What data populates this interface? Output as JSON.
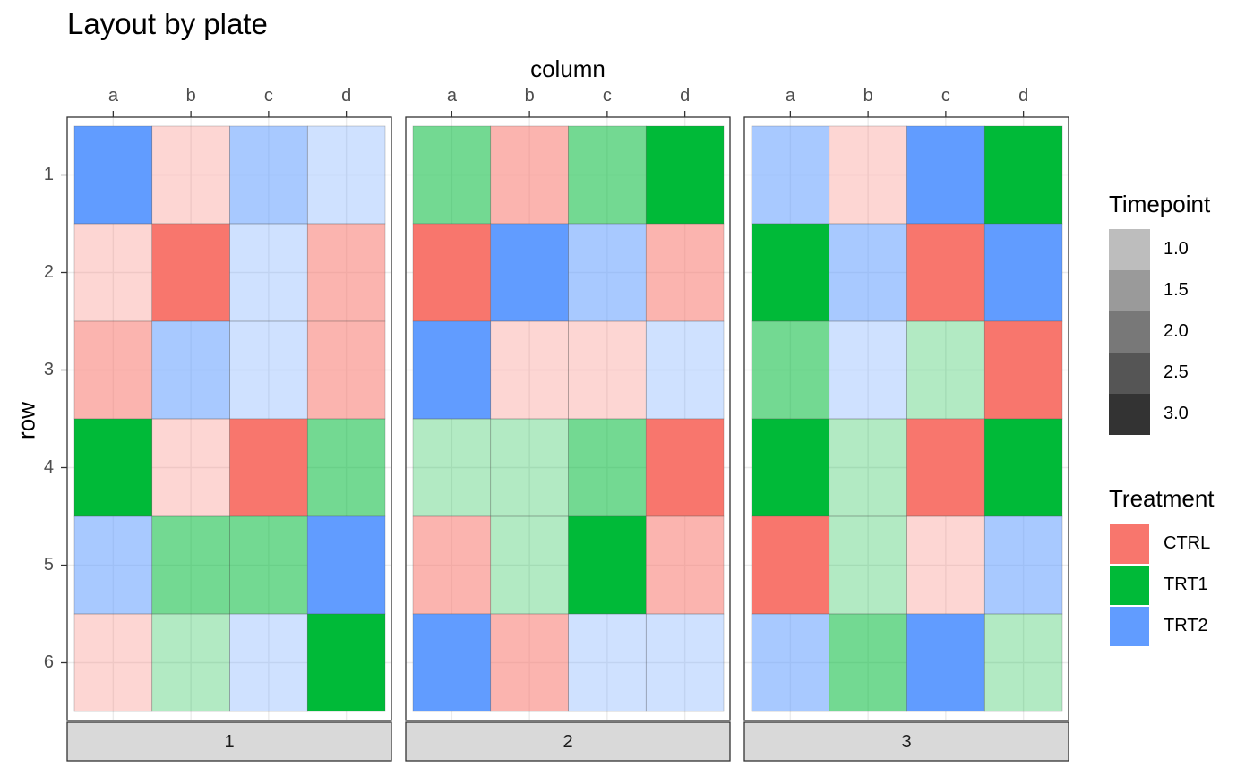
{
  "chart_data": {
    "type": "heatmap",
    "title": "Layout by plate",
    "xlabel": "column",
    "ylabel": "row",
    "x_categories": [
      "a",
      "b",
      "c",
      "d"
    ],
    "y_categories": [
      "1",
      "2",
      "3",
      "4",
      "5",
      "6"
    ],
    "facets": [
      {
        "plate": "1",
        "cells": [
          [
            {
              "t": "TRT2",
              "tp": 1.0
            },
            {
              "t": "CTRL",
              "tp": 3.0
            },
            {
              "t": "TRT2",
              "tp": 2.0
            },
            {
              "t": "TRT2",
              "tp": 3.0
            }
          ],
          [
            {
              "t": "CTRL",
              "tp": 3.0
            },
            {
              "t": "CTRL",
              "tp": 1.0
            },
            {
              "t": "TRT2",
              "tp": 3.0
            },
            {
              "t": "CTRL",
              "tp": 2.0
            }
          ],
          [
            {
              "t": "CTRL",
              "tp": 2.0
            },
            {
              "t": "TRT2",
              "tp": 2.0
            },
            {
              "t": "TRT2",
              "tp": 3.0
            },
            {
              "t": "CTRL",
              "tp": 2.0
            }
          ],
          [
            {
              "t": "TRT1",
              "tp": 1.0
            },
            {
              "t": "CTRL",
              "tp": 3.0
            },
            {
              "t": "CTRL",
              "tp": 1.0
            },
            {
              "t": "TRT1",
              "tp": 2.0
            }
          ],
          [
            {
              "t": "TRT2",
              "tp": 2.0
            },
            {
              "t": "TRT1",
              "tp": 2.0
            },
            {
              "t": "TRT1",
              "tp": 2.0
            },
            {
              "t": "TRT2",
              "tp": 1.0
            }
          ],
          [
            {
              "t": "CTRL",
              "tp": 3.0
            },
            {
              "t": "TRT1",
              "tp": 3.0
            },
            {
              "t": "TRT2",
              "tp": 3.0
            },
            {
              "t": "TRT1",
              "tp": 1.0
            }
          ]
        ]
      },
      {
        "plate": "2",
        "cells": [
          [
            {
              "t": "TRT1",
              "tp": 2.0
            },
            {
              "t": "CTRL",
              "tp": 2.0
            },
            {
              "t": "TRT1",
              "tp": 2.0
            },
            {
              "t": "TRT1",
              "tp": 1.0
            }
          ],
          [
            {
              "t": "CTRL",
              "tp": 1.0
            },
            {
              "t": "TRT2",
              "tp": 1.0
            },
            {
              "t": "TRT2",
              "tp": 2.0
            },
            {
              "t": "CTRL",
              "tp": 2.0
            }
          ],
          [
            {
              "t": "TRT2",
              "tp": 1.0
            },
            {
              "t": "CTRL",
              "tp": 3.0
            },
            {
              "t": "CTRL",
              "tp": 3.0
            },
            {
              "t": "TRT2",
              "tp": 3.0
            }
          ],
          [
            {
              "t": "TRT1",
              "tp": 3.0
            },
            {
              "t": "TRT1",
              "tp": 3.0
            },
            {
              "t": "TRT1",
              "tp": 2.0
            },
            {
              "t": "CTRL",
              "tp": 1.0
            }
          ],
          [
            {
              "t": "CTRL",
              "tp": 2.0
            },
            {
              "t": "TRT1",
              "tp": 3.0
            },
            {
              "t": "TRT1",
              "tp": 1.0
            },
            {
              "t": "CTRL",
              "tp": 2.0
            }
          ],
          [
            {
              "t": "TRT2",
              "tp": 1.0
            },
            {
              "t": "CTRL",
              "tp": 2.0
            },
            {
              "t": "TRT2",
              "tp": 3.0
            },
            {
              "t": "TRT2",
              "tp": 3.0
            }
          ]
        ]
      },
      {
        "plate": "3",
        "cells": [
          [
            {
              "t": "TRT2",
              "tp": 2.0
            },
            {
              "t": "CTRL",
              "tp": 3.0
            },
            {
              "t": "TRT2",
              "tp": 1.0
            },
            {
              "t": "TRT1",
              "tp": 1.0
            }
          ],
          [
            {
              "t": "TRT1",
              "tp": 1.0
            },
            {
              "t": "TRT2",
              "tp": 2.0
            },
            {
              "t": "CTRL",
              "tp": 1.0
            },
            {
              "t": "TRT2",
              "tp": 1.0
            }
          ],
          [
            {
              "t": "TRT1",
              "tp": 2.0
            },
            {
              "t": "TRT2",
              "tp": 3.0
            },
            {
              "t": "TRT1",
              "tp": 3.0
            },
            {
              "t": "CTRL",
              "tp": 1.0
            }
          ],
          [
            {
              "t": "TRT1",
              "tp": 1.0
            },
            {
              "t": "TRT1",
              "tp": 3.0
            },
            {
              "t": "CTRL",
              "tp": 1.0
            },
            {
              "t": "TRT1",
              "tp": 1.0
            }
          ],
          [
            {
              "t": "CTRL",
              "tp": 1.0
            },
            {
              "t": "TRT1",
              "tp": 3.0
            },
            {
              "t": "CTRL",
              "tp": 3.0
            },
            {
              "t": "TRT2",
              "tp": 2.0
            }
          ],
          [
            {
              "t": "TRT2",
              "tp": 2.0
            },
            {
              "t": "TRT1",
              "tp": 2.0
            },
            {
              "t": "TRT2",
              "tp": 1.0
            },
            {
              "t": "TRT1",
              "tp": 3.0
            }
          ]
        ]
      }
    ],
    "treatment_colors": {
      "CTRL": "#F8766D",
      "TRT1": "#00BA38",
      "TRT2": "#619CFF"
    },
    "timepoint_alpha": {
      "1": 1.0,
      "2": 0.55,
      "3": 0.3
    },
    "grid": true,
    "legend_position": "right",
    "legends": {
      "timepoint": {
        "title": "Timepoint",
        "entries": [
          {
            "label": "1.0",
            "color": "#BDBDBD"
          },
          {
            "label": "1.5",
            "color": "#9A9A9A"
          },
          {
            "label": "2.0",
            "color": "#787878"
          },
          {
            "label": "2.5",
            "color": "#555555"
          },
          {
            "label": "3.0",
            "color": "#333333"
          }
        ]
      },
      "treatment": {
        "title": "Treatment",
        "entries": [
          {
            "label": "CTRL",
            "color": "#F8766D"
          },
          {
            "label": "TRT1",
            "color": "#00BA38"
          },
          {
            "label": "TRT2",
            "color": "#619CFF"
          }
        ]
      }
    }
  }
}
